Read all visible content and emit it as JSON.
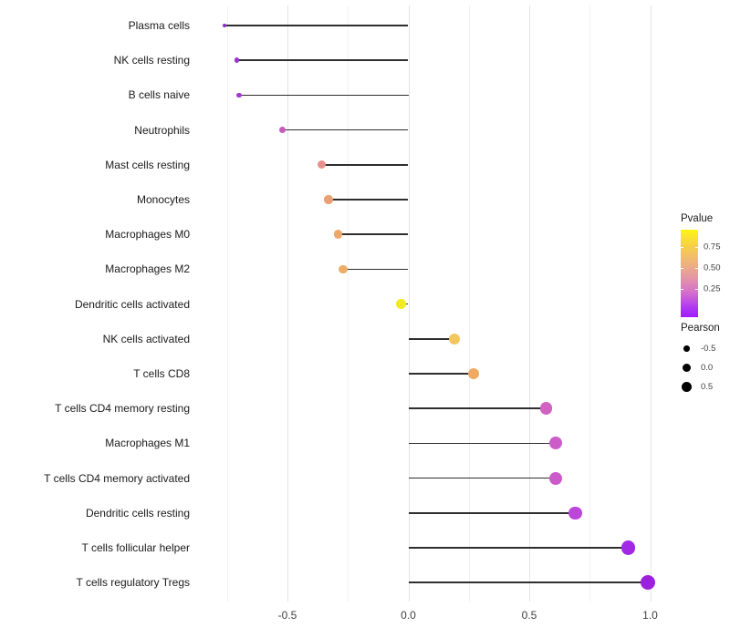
{
  "chart_data": {
    "type": "lollipop",
    "title": "",
    "xlabel": "",
    "ylabel": "",
    "grid": true,
    "legend_position": "right",
    "x_tick_labels": [
      "-0.5",
      "0.0",
      "0.5",
      "1.0"
    ],
    "x_tick_values": [
      -0.5,
      0.0,
      0.5,
      1.0
    ],
    "x_minor_grid_values": [
      -0.75,
      -0.25,
      0.25,
      0.75
    ],
    "xlim": [
      -0.88,
      1.07
    ],
    "categories": [
      "Plasma cells",
      "NK cells resting",
      "B cells naive",
      "Neutrophils",
      "Mast cells resting",
      "Monocytes",
      "Macrophages M0",
      "Macrophages M2",
      "Dendritic cells activated",
      "NK cells activated",
      "T cells CD8",
      "T cells CD4 memory resting",
      "Macrophages M1",
      "T cells CD4 memory activated",
      "Dendritic cells resting",
      "T cells follicular helper",
      "T cells regulatory  Tregs"
    ],
    "series_name": "Pearson",
    "points": [
      {
        "label": "Plasma cells",
        "pearson": -0.76,
        "color": "#8d2bc9",
        "diameter": 4.0
      },
      {
        "label": "NK cells resting",
        "pearson": -0.71,
        "color": "#9c35cf",
        "diameter": 5.5
      },
      {
        "label": "B cells naive",
        "pearson": -0.7,
        "color": "#a139d2",
        "diameter": 5.8
      },
      {
        "label": "Neutrophils",
        "pearson": -0.52,
        "color": "#c65bbb",
        "diameter": 7.5
      },
      {
        "label": "Mast cells resting",
        "pearson": -0.36,
        "color": "#e6908b",
        "diameter": 9.0
      },
      {
        "label": "Monocytes",
        "pearson": -0.33,
        "color": "#e9a074",
        "diameter": 9.2
      },
      {
        "label": "Macrophages M0",
        "pearson": -0.29,
        "color": "#eca76d",
        "diameter": 9.5
      },
      {
        "label": "Macrophages M2",
        "pearson": -0.27,
        "color": "#edad68",
        "diameter": 9.7
      },
      {
        "label": "Dendritic cells activated",
        "pearson": -0.03,
        "color": "#f1ea1c",
        "diameter": 11.3
      },
      {
        "label": "NK cells activated",
        "pearson": 0.19,
        "color": "#f3c75e",
        "diameter": 12.2
      },
      {
        "label": "T cells CD8",
        "pearson": 0.27,
        "color": "#efaa61",
        "diameter": 12.6
      },
      {
        "label": "T cells CD4 memory resting",
        "pearson": 0.57,
        "color": "#d161c3",
        "diameter": 13.8
      },
      {
        "label": "Macrophages M1",
        "pearson": 0.61,
        "color": "#cc5cc8",
        "diameter": 14.0
      },
      {
        "label": "T cells CD4 memory activated",
        "pearson": 0.61,
        "color": "#cb5bc9",
        "diameter": 14.0
      },
      {
        "label": "Dendritic cells resting",
        "pearson": 0.69,
        "color": "#bc46da",
        "diameter": 14.5
      },
      {
        "label": "T cells follicular helper",
        "pearson": 0.91,
        "color": "#a228e4",
        "diameter": 15.5
      },
      {
        "label": "T cells regulatory  Tregs",
        "pearson": 0.99,
        "color": "#9c21dd",
        "diameter": 16.5
      }
    ],
    "legends": {
      "pvalue": {
        "title": "Pvalue",
        "tick_labels": [
          "0.75",
          "0.50",
          "0.25"
        ],
        "tick_positions_pct": [
          20,
          44,
          68
        ],
        "gradient_stops": [
          {
            "pos": 0,
            "color": "#fdf515"
          },
          {
            "pos": 18,
            "color": "#f7d148"
          },
          {
            "pos": 38,
            "color": "#efb37c"
          },
          {
            "pos": 55,
            "color": "#e495a6"
          },
          {
            "pos": 72,
            "color": "#d56fcd"
          },
          {
            "pos": 88,
            "color": "#b23bee"
          },
          {
            "pos": 100,
            "color": "#9e1cfb"
          }
        ]
      },
      "pearson": {
        "title": "Pearson",
        "items": [
          {
            "label": "-0.5",
            "diameter": 6.5
          },
          {
            "label": "0.0",
            "diameter": 9.0
          },
          {
            "label": "0.5",
            "diameter": 11.0
          }
        ]
      }
    }
  }
}
